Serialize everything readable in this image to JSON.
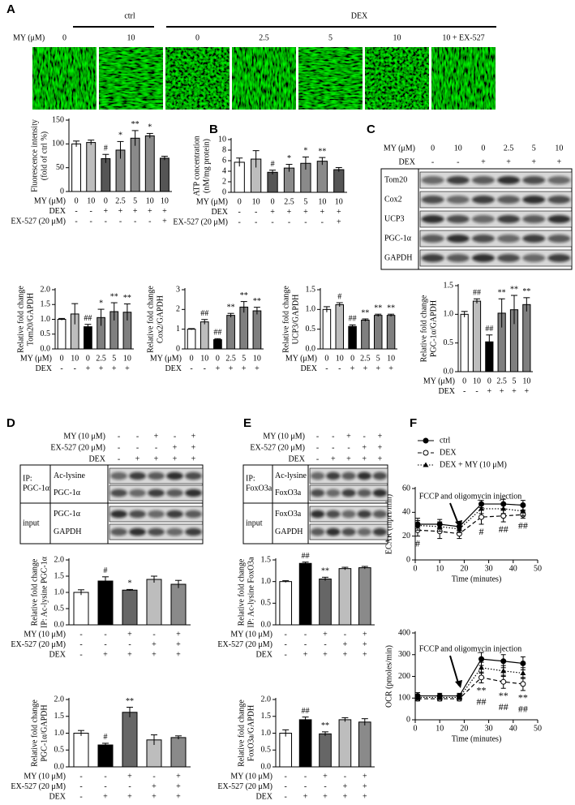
{
  "panel_labels": [
    "A",
    "B",
    "C",
    "D",
    "E",
    "F"
  ],
  "panel_a": {
    "group_labels": [
      "ctrl",
      "DEX"
    ],
    "row_label": "MY (μM)",
    "columns": [
      "0",
      "10",
      "0",
      "2.5",
      "5",
      "10",
      "10 + EX-527"
    ]
  },
  "blot_c": {
    "rows": [
      {
        "name": "MY (μM)",
        "cells": [
          "0",
          "10",
          "0",
          "2.5",
          "5",
          "10"
        ]
      },
      {
        "name": "DEX",
        "cells": [
          "-",
          "-",
          "+",
          "+",
          "+",
          "+"
        ]
      }
    ],
    "bands": [
      "Tom20",
      "Cox2",
      "UCP3",
      "PGC-1α",
      "GAPDH"
    ]
  },
  "blot_d": {
    "rows": [
      {
        "name": "MY (10 μM)",
        "cells": [
          "-",
          "-",
          "+",
          "-",
          "+"
        ]
      },
      {
        "name": "EX-527 (20 μM)",
        "cells": [
          "-",
          "-",
          "-",
          "+",
          "+"
        ]
      },
      {
        "name": "DEX",
        "cells": [
          "-",
          "+",
          "+",
          "+",
          "+"
        ]
      }
    ],
    "ip_label": [
      "IP:",
      "PGC-1α"
    ],
    "input_label": "input",
    "bands": [
      "Ac-lysine",
      "PGC-1α",
      "PGC-1α",
      "GAPDH"
    ]
  },
  "blot_e": {
    "rows": [
      {
        "name": "MY (10 μM)",
        "cells": [
          "-",
          "-",
          "+",
          "-",
          "+"
        ]
      },
      {
        "name": "EX-527 (20 μM)",
        "cells": [
          "-",
          "-",
          "-",
          "+",
          "+"
        ]
      },
      {
        "name": "DEX",
        "cells": [
          "-",
          "+",
          "+",
          "+",
          "+"
        ]
      }
    ],
    "ip_label": [
      "IP:",
      "FoxO3a"
    ],
    "input_label": "input",
    "bands": [
      "Ac-lysine",
      "FoxO3a",
      "FoxO3a",
      "GAPDH"
    ]
  },
  "chart_data": [
    {
      "type": "bar",
      "ylabel": [
        "Fluorescence intensity",
        "(fold of ctrl %)"
      ],
      "ylim": [
        0,
        150
      ],
      "yticks": [
        0,
        50,
        100,
        150
      ],
      "values": [
        100,
        103,
        69,
        87,
        112,
        117,
        70
      ],
      "errors": [
        6,
        5,
        9,
        18,
        16,
        5,
        4
      ],
      "colors": [
        "#ffffff",
        "#bdbdbd",
        "#555555",
        "#8a8a8a",
        "#8a8a8a",
        "#8a8a8a",
        "#555555"
      ],
      "significance": [
        null,
        null,
        "#",
        "*",
        "**",
        "*",
        null
      ],
      "rows": [
        {
          "name": "MY (μM)",
          "cells": [
            "0",
            "10",
            "0",
            "2.5",
            "5",
            "10",
            "10"
          ]
        },
        {
          "name": "DEX",
          "cells": [
            "-",
            "-",
            "+",
            "+",
            "+",
            "+",
            "+"
          ]
        },
        {
          "name": "EX-527 (20 μM)",
          "cells": [
            "-",
            "-",
            "-",
            "-",
            "-",
            "-",
            "+"
          ]
        }
      ]
    },
    {
      "type": "bar",
      "ylabel": [
        "ATP concentration",
        "(nM/mg protein)"
      ],
      "ylim": [
        0,
        10
      ],
      "yticks": [
        0,
        2,
        4,
        6,
        8,
        10
      ],
      "values": [
        5.7,
        6.3,
        3.8,
        4.6,
        5.5,
        5.9,
        4.3
      ],
      "errors": [
        0.8,
        1.6,
        0.4,
        0.7,
        1.2,
        0.7,
        0.4
      ],
      "colors": [
        "#ffffff",
        "#bdbdbd",
        "#555555",
        "#8a8a8a",
        "#8a8a8a",
        "#8a8a8a",
        "#555555"
      ],
      "significance": [
        null,
        null,
        "#",
        "*",
        "*",
        "**",
        null
      ],
      "rows": [
        {
          "name": "MY (μM)",
          "cells": [
            "0",
            "10",
            "0",
            "2.5",
            "5",
            "10",
            "10"
          ]
        },
        {
          "name": "DEX",
          "cells": [
            "-",
            "-",
            "+",
            "+",
            "+",
            "+",
            "+"
          ]
        },
        {
          "name": "EX-527 (20 μM)",
          "cells": [
            "-",
            "-",
            "-",
            "-",
            "-",
            "-",
            "+"
          ]
        }
      ]
    },
    {
      "type": "bar",
      "ylabel": [
        "Relative fold change",
        "Tom20/GAPDH"
      ],
      "ylim": [
        0,
        2
      ],
      "yticks": [
        {
          "value": 0,
          "label": "0.0"
        },
        {
          "value": 0.5,
          "label": "0.5"
        },
        {
          "value": 1,
          "label": "1.0"
        },
        {
          "value": 1.5,
          "label": "1.5"
        },
        {
          "value": 2,
          "label": "2.0"
        }
      ],
      "values": [
        1.0,
        1.18,
        0.75,
        1.06,
        1.26,
        1.24
      ],
      "errors": [
        0.03,
        0.35,
        0.08,
        0.28,
        0.3,
        0.28
      ],
      "colors": [
        "#ffffff",
        "#bdbdbd",
        "#000000",
        "#7f7f7f",
        "#7f7f7f",
        "#7f7f7f"
      ],
      "significance": [
        null,
        null,
        "##",
        "*",
        "**",
        "**"
      ],
      "rows": [
        {
          "name": "MY (μM)",
          "cells": [
            "0",
            "10",
            "0",
            "2.5",
            "5",
            "10"
          ]
        },
        {
          "name": "DEX",
          "cells": [
            "-",
            "-",
            "+",
            "+",
            "+",
            "+"
          ]
        }
      ]
    },
    {
      "type": "bar",
      "ylabel": [
        "Relative fold change",
        "Cox2/GAPDH"
      ],
      "ylim": [
        0,
        3
      ],
      "yticks": [
        0,
        1,
        2,
        3
      ],
      "values": [
        1.0,
        1.37,
        0.47,
        1.7,
        2.12,
        1.93
      ],
      "errors": [
        0.03,
        0.12,
        0.05,
        0.1,
        0.28,
        0.18
      ],
      "colors": [
        "#ffffff",
        "#bdbdbd",
        "#000000",
        "#7f7f7f",
        "#7f7f7f",
        "#7f7f7f"
      ],
      "significance": [
        null,
        "##",
        "##",
        "**",
        "**",
        "**"
      ],
      "rows": [
        {
          "name": "MY (μM)",
          "cells": [
            "0",
            "10",
            "0",
            "2.5",
            "5",
            "10"
          ]
        },
        {
          "name": "DEX",
          "cells": [
            "-",
            "-",
            "+",
            "+",
            "+",
            "+"
          ]
        }
      ]
    },
    {
      "type": "bar",
      "ylabel": [
        "Relative fold change",
        "UCP3/GAPDH"
      ],
      "ylim": [
        0,
        1.5
      ],
      "yticks": [
        {
          "value": 0,
          "label": "0.0"
        },
        {
          "value": 0.5,
          "label": "0.5"
        },
        {
          "value": 1,
          "label": "1.0"
        },
        {
          "value": 1.5,
          "label": "1.5"
        }
      ],
      "values": [
        1.0,
        1.12,
        0.57,
        0.73,
        0.85,
        0.85
      ],
      "errors": [
        0.07,
        0.05,
        0.04,
        0.03,
        0.03,
        0.03
      ],
      "colors": [
        "#ffffff",
        "#bdbdbd",
        "#000000",
        "#7f7f7f",
        "#7f7f7f",
        "#7f7f7f"
      ],
      "significance": [
        null,
        "#",
        "##",
        "**",
        "**",
        "**"
      ],
      "rows": [
        {
          "name": "MY (μM)",
          "cells": [
            "0",
            "10",
            "0",
            "2.5",
            "5",
            "10"
          ]
        },
        {
          "name": "DEX",
          "cells": [
            "-",
            "-",
            "+",
            "+",
            "+",
            "+"
          ]
        }
      ]
    },
    {
      "type": "bar",
      "ylabel": [
        "Relative fold change",
        "PGC-1α/GAPDH"
      ],
      "ylim": [
        0,
        1.5
      ],
      "yticks": [
        {
          "value": 0,
          "label": "0.0"
        },
        {
          "value": 0.5,
          "label": "0.5"
        },
        {
          "value": 1,
          "label": "1.0"
        },
        {
          "value": 1.5,
          "label": "1.5"
        }
      ],
      "values": [
        1.0,
        1.23,
        0.52,
        1.02,
        1.08,
        1.17
      ],
      "errors": [
        0.05,
        0.04,
        0.12,
        0.25,
        0.25,
        0.12
      ],
      "colors": [
        "#ffffff",
        "#bdbdbd",
        "#000000",
        "#7f7f7f",
        "#7f7f7f",
        "#7f7f7f"
      ],
      "significance": [
        null,
        "##",
        "##",
        "**",
        "**",
        "**"
      ],
      "rows": [
        {
          "name": "MY (μM)",
          "cells": [
            "0",
            "10",
            "0",
            "2.5",
            "5",
            "10"
          ]
        },
        {
          "name": "DEX",
          "cells": [
            "-",
            "-",
            "+",
            "+",
            "+",
            "+"
          ]
        }
      ]
    },
    {
      "type": "bar",
      "ylabel": [
        "Relative fold change",
        "IP: Ac-lysine PGC-1α"
      ],
      "ylim": [
        0,
        2
      ],
      "yticks": [
        {
          "value": 0,
          "label": "0.0"
        },
        {
          "value": 0.5,
          "label": "0.5"
        },
        {
          "value": 1,
          "label": "1.0"
        },
        {
          "value": 1.5,
          "label": "1.5"
        },
        {
          "value": 2,
          "label": "2.0"
        }
      ],
      "values": [
        1.0,
        1.35,
        1.07,
        1.4,
        1.25
      ],
      "errors": [
        0.08,
        0.13,
        0.02,
        0.1,
        0.12
      ],
      "colors": [
        "#ffffff",
        "#000000",
        "#666666",
        "#bdbdbd",
        "#8a8a8a"
      ],
      "significance": [
        null,
        "#",
        "*",
        null,
        null
      ],
      "rows": [
        {
          "name": "MY (10 μM)",
          "cells": [
            "-",
            "-",
            "+",
            "-",
            "+"
          ]
        },
        {
          "name": "EX-527 (20 μM)",
          "cells": [
            "-",
            "-",
            "-",
            "+",
            "+"
          ]
        },
        {
          "name": "DEX",
          "cells": [
            "-",
            "+",
            "+",
            "+",
            "+"
          ]
        }
      ]
    },
    {
      "type": "bar",
      "ylabel": [
        "Relative fold change",
        "PGC-1α/GAPDH"
      ],
      "ylim": [
        0,
        2
      ],
      "yticks": [
        {
          "value": 0,
          "label": "0.0"
        },
        {
          "value": 0.5,
          "label": "0.5"
        },
        {
          "value": 1,
          "label": "1.0"
        },
        {
          "value": 1.5,
          "label": "1.5"
        },
        {
          "value": 2,
          "label": "2.0"
        }
      ],
      "values": [
        1.0,
        0.65,
        1.62,
        0.8,
        0.87
      ],
      "errors": [
        0.08,
        0.05,
        0.15,
        0.15,
        0.05
      ],
      "colors": [
        "#ffffff",
        "#000000",
        "#666666",
        "#bdbdbd",
        "#8a8a8a"
      ],
      "significance": [
        null,
        "#",
        "**",
        null,
        null
      ],
      "rows": [
        {
          "name": "MY (10 μM)",
          "cells": [
            "-",
            "-",
            "+",
            "-",
            "+"
          ]
        },
        {
          "name": "EX-527 (20 μM)",
          "cells": [
            "-",
            "-",
            "-",
            "+",
            "+"
          ]
        },
        {
          "name": "DEX",
          "cells": [
            "-",
            "+",
            "+",
            "+",
            "+"
          ]
        }
      ]
    },
    {
      "type": "bar",
      "ylabel": [
        "Relative fold change",
        "IP: Ac-lysine FoxO3a"
      ],
      "ylim": [
        0,
        1.5
      ],
      "yticks": [
        {
          "value": 0,
          "label": "0.0"
        },
        {
          "value": 0.5,
          "label": "0.5"
        },
        {
          "value": 1,
          "label": "1.0"
        },
        {
          "value": 1.5,
          "label": "1.5"
        }
      ],
      "values": [
        1.0,
        1.42,
        1.06,
        1.3,
        1.32
      ],
      "errors": [
        0.02,
        0.03,
        0.04,
        0.03,
        0.03
      ],
      "colors": [
        "#ffffff",
        "#000000",
        "#666666",
        "#bdbdbd",
        "#8a8a8a"
      ],
      "significance": [
        null,
        "##",
        "**",
        null,
        null
      ],
      "rows": [
        {
          "name": "MY (10 μM)",
          "cells": [
            "-",
            "-",
            "+",
            "-",
            "+"
          ]
        },
        {
          "name": "EX-527 (20 μM)",
          "cells": [
            "-",
            "-",
            "-",
            "+",
            "+"
          ]
        },
        {
          "name": "DEX",
          "cells": [
            "-",
            "+",
            "+",
            "+",
            "+"
          ]
        }
      ]
    },
    {
      "type": "bar",
      "ylabel": [
        "Relative fold change",
        "FoxO3a/GAPDH"
      ],
      "ylim": [
        0,
        2
      ],
      "yticks": [
        {
          "value": 0,
          "label": "0.0"
        },
        {
          "value": 0.5,
          "label": "0.5"
        },
        {
          "value": 1,
          "label": "1.0"
        },
        {
          "value": 1.5,
          "label": "1.5"
        },
        {
          "value": 2,
          "label": "2.0"
        }
      ],
      "values": [
        1.0,
        1.4,
        0.98,
        1.4,
        1.33
      ],
      "errors": [
        0.1,
        0.08,
        0.06,
        0.06,
        0.1
      ],
      "colors": [
        "#ffffff",
        "#000000",
        "#666666",
        "#bdbdbd",
        "#8a8a8a"
      ],
      "significance": [
        null,
        "##",
        "**",
        null,
        null
      ],
      "rows": [
        {
          "name": "MY (10 μM)",
          "cells": [
            "-",
            "-",
            "+",
            "-",
            "+"
          ]
        },
        {
          "name": "EX-527 (20 μM)",
          "cells": [
            "-",
            "-",
            "-",
            "+",
            "+"
          ]
        },
        {
          "name": "DEX",
          "cells": [
            "-",
            "+",
            "+",
            "+",
            "+"
          ]
        }
      ]
    },
    {
      "type": "line",
      "ylabel": "ECAR (mpH/min)",
      "xlabel": "Time (minutes)",
      "annotation": "FCCP and oligomycin injection",
      "legend": true,
      "x": [
        1,
        10,
        18,
        27,
        36,
        44
      ],
      "xlim": [
        0,
        50
      ],
      "xticks": [
        0,
        10,
        20,
        30,
        40,
        50
      ],
      "ylim": [
        0,
        60
      ],
      "yticks": [
        0,
        20,
        40,
        60
      ],
      "series": [
        {
          "name": "ctrl",
          "color": "#000000",
          "marker": "filled-circle",
          "line": "solid",
          "values": [
            30,
            30,
            28,
            47,
            47,
            46
          ],
          "errors": [
            5,
            4,
            3,
            3,
            4,
            4
          ]
        },
        {
          "name": "DEX",
          "color": "#000000",
          "marker": "open-circle",
          "line": "dashed",
          "values": [
            25,
            24,
            22,
            36,
            37,
            38
          ],
          "errors": [
            5,
            6,
            4,
            6,
            5,
            3
          ]
        },
        {
          "name": "DEX + MY (10 μM)",
          "color": "#000000",
          "marker": "triangle",
          "line": "dotted",
          "values": [
            29,
            28,
            26,
            43,
            43,
            41
          ],
          "errors": [
            4,
            4,
            3,
            4,
            4,
            4
          ]
        }
      ],
      "significance": [
        [
          "#",
          null,
          null,
          "#",
          "##",
          "##"
        ]
      ]
    },
    {
      "type": "line",
      "ylabel": "OCR (pmoles/min)",
      "xlabel": "Time (minutes)",
      "annotation": "FCCP and oligomycin injection",
      "legend": false,
      "x": [
        1,
        10,
        18,
        27,
        36,
        44
      ],
      "xlim": [
        0,
        50
      ],
      "xticks": [
        0,
        10,
        20,
        30,
        40,
        50
      ],
      "ylim": [
        0,
        400
      ],
      "yticks": [
        0,
        100,
        200,
        300,
        400
      ],
      "series": [
        {
          "color": "#000000",
          "marker": "filled-circle",
          "line": "solid",
          "values": [
            110,
            110,
            110,
            280,
            270,
            260
          ],
          "errors": [
            15,
            12,
            12,
            30,
            30,
            30
          ]
        },
        {
          "color": "#000000",
          "marker": "open-circle",
          "line": "dashed",
          "values": [
            97,
            97,
            97,
            195,
            175,
            165
          ],
          "errors": [
            10,
            10,
            10,
            25,
            30,
            30
          ]
        },
        {
          "color": "#000000",
          "marker": "triangle",
          "line": "dotted",
          "values": [
            103,
            103,
            103,
            240,
            225,
            215
          ],
          "errors": [
            12,
            10,
            10,
            25,
            25,
            25
          ]
        }
      ],
      "significance": [
        [
          null,
          null,
          null,
          "**",
          "**",
          "**"
        ],
        [
          null,
          null,
          null,
          "##",
          "##",
          "##"
        ]
      ]
    }
  ]
}
